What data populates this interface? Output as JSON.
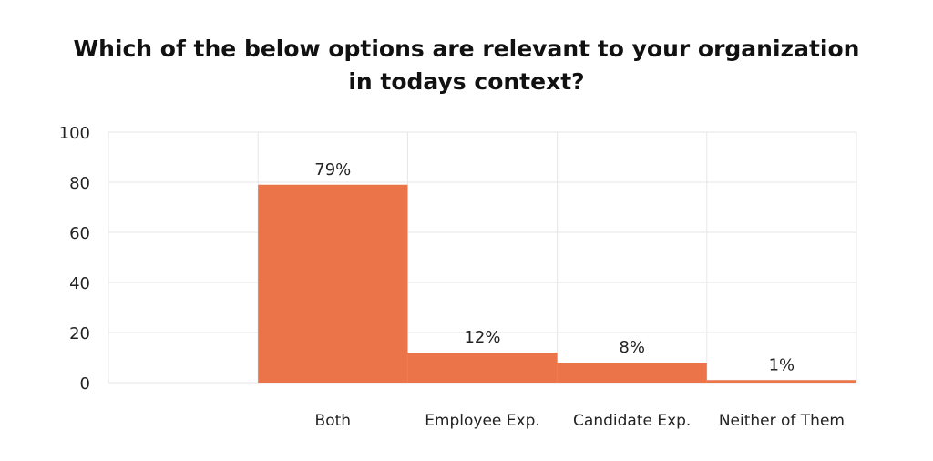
{
  "chart_data": {
    "type": "bar",
    "title_lines": [
      "Which of the below options are relevant to your organization",
      "in todays context?"
    ],
    "categories": [
      "Both",
      "Employee Exp.",
      "Candidate Exp.",
      "Neither of Them"
    ],
    "values": [
      79,
      12,
      8,
      1
    ],
    "data_labels": [
      "79%",
      "12%",
      "8%",
      "1%"
    ],
    "yticks": [
      "0",
      "20",
      "40",
      "60",
      "80",
      "100"
    ],
    "ylim": [
      0,
      100
    ],
    "xlabel": "",
    "ylabel": "",
    "grid": true,
    "legend": "none",
    "bar_color": "#EC7449",
    "grid_color": "#E6E6E6"
  }
}
